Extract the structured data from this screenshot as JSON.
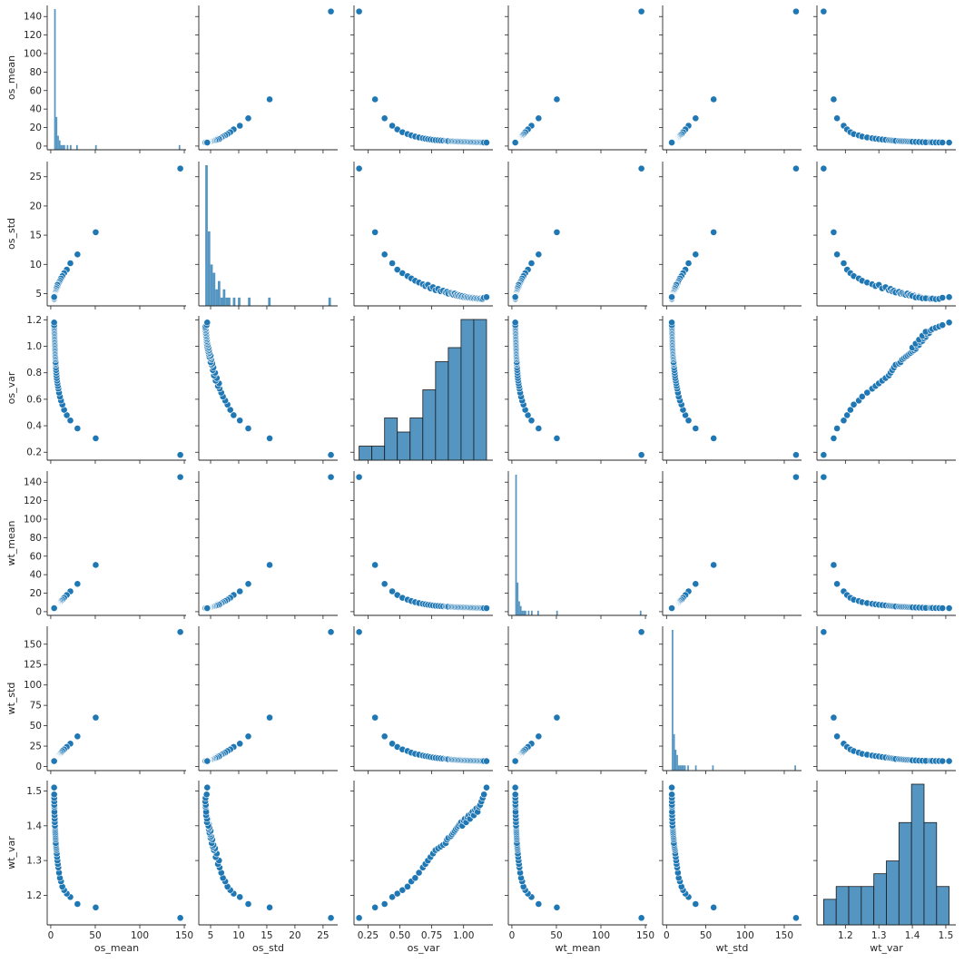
{
  "chart_data": {
    "type": "pairplot",
    "variables": [
      "os_mean",
      "os_std",
      "os_var",
      "wt_mean",
      "wt_std",
      "wt_var"
    ],
    "point_color": "#1f77b4",
    "hist_color": "#4c8fbf",
    "axes": {
      "os_mean": {
        "label": "os_mean",
        "range": [
          -4,
          152
        ],
        "ticks": [
          0,
          20,
          40,
          60,
          80,
          100,
          120,
          140
        ],
        "bottom_ticks": [
          0,
          50,
          100,
          150
        ],
        "tick_format": "int"
      },
      "os_std": {
        "label": "os_std",
        "range": [
          2.9,
          27.6
        ],
        "ticks": [
          5,
          10,
          15,
          20,
          25
        ],
        "bottom_ticks": [
          5,
          10,
          15,
          20,
          25
        ],
        "tick_format": "int"
      },
      "os_var": {
        "label": "os_var",
        "range": [
          0.14,
          1.23
        ],
        "ticks": [
          0.2,
          0.4,
          0.6,
          0.8,
          1.0,
          1.2
        ],
        "bottom_ticks": [
          0.25,
          0.5,
          0.75,
          1.0
        ],
        "tick_format": "fixed1",
        "bottom_tick_format": "fixed2"
      },
      "wt_mean": {
        "label": "wt_mean",
        "range": [
          -4,
          152
        ],
        "ticks": [
          0,
          20,
          40,
          60,
          80,
          100,
          120,
          140
        ],
        "bottom_ticks": [
          0,
          50,
          100,
          150
        ],
        "tick_format": "int"
      },
      "wt_std": {
        "label": "wt_std",
        "range": [
          -5,
          172
        ],
        "ticks": [
          0,
          25,
          50,
          75,
          100,
          125,
          150
        ],
        "bottom_ticks": [
          0,
          50,
          100,
          150
        ],
        "tick_format": "int"
      },
      "wt_var": {
        "label": "wt_var",
        "range": [
          1.115,
          1.53
        ],
        "ticks": [
          1.2,
          1.3,
          1.4,
          1.5
        ],
        "bottom_ticks": [
          1.2,
          1.3,
          1.4,
          1.5
        ],
        "tick_format": "fixed1"
      }
    },
    "records": [
      [
        145.5,
        26.4,
        0.18,
        145.5,
        165,
        1.135
      ],
      [
        50.5,
        15.5,
        0.305,
        50.5,
        60,
        1.165
      ],
      [
        30.0,
        11.7,
        0.38,
        30.0,
        37,
        1.175
      ],
      [
        22.0,
        10.2,
        0.44,
        22.0,
        28,
        1.195
      ],
      [
        18.0,
        9.1,
        0.48,
        18.0,
        24,
        1.205
      ],
      [
        15.0,
        8.5,
        0.52,
        15.0,
        21,
        1.215
      ],
      [
        13.0,
        8.0,
        0.56,
        13.0,
        19,
        1.225
      ],
      [
        11.5,
        7.6,
        0.59,
        11.5,
        17,
        1.24
      ],
      [
        10.3,
        7.2,
        0.62,
        10.3,
        15.5,
        1.25
      ],
      [
        9.3,
        6.9,
        0.65,
        9.3,
        14.5,
        1.265
      ],
      [
        8.5,
        6.6,
        0.68,
        8.5,
        13.5,
        1.28
      ],
      [
        8.0,
        6.3,
        0.7,
        8.0,
        12.8,
        1.29
      ],
      [
        7.5,
        6.5,
        0.72,
        7.5,
        12.3,
        1.3
      ],
      [
        7.1,
        5.9,
        0.74,
        7.1,
        11.7,
        1.31
      ],
      [
        6.7,
        6.1,
        0.76,
        6.7,
        11.1,
        1.32
      ],
      [
        6.4,
        5.6,
        0.78,
        6.4,
        10.7,
        1.33
      ],
      [
        6.2,
        5.8,
        0.8,
        6.2,
        10.3,
        1.335
      ],
      [
        6.0,
        5.4,
        0.82,
        6.0,
        10.0,
        1.34
      ],
      [
        5.8,
        5.5,
        0.84,
        5.8,
        9.6,
        1.345
      ],
      [
        5.6,
        5.2,
        0.86,
        5.6,
        9.3,
        1.35
      ],
      [
        5.5,
        5.3,
        0.87,
        5.5,
        9.1,
        1.36
      ],
      [
        5.4,
        5.0,
        0.88,
        5.4,
        8.9,
        1.365
      ],
      [
        5.3,
        5.1,
        0.9,
        5.3,
        8.7,
        1.37
      ],
      [
        5.2,
        4.9,
        0.91,
        5.2,
        8.5,
        1.375
      ],
      [
        5.1,
        4.8,
        0.92,
        5.1,
        8.3,
        1.38
      ],
      [
        5.0,
        5.0,
        0.93,
        5.0,
        8.2,
        1.385
      ],
      [
        4.95,
        4.7,
        0.94,
        4.95,
        8.1,
        1.39
      ],
      [
        4.9,
        4.8,
        0.95,
        4.9,
        8.0,
        1.395
      ],
      [
        4.85,
        4.6,
        0.96,
        4.85,
        7.9,
        1.4
      ],
      [
        4.8,
        4.7,
        0.97,
        4.8,
        7.8,
        1.405
      ],
      [
        4.75,
        4.5,
        0.98,
        4.75,
        7.7,
        1.41
      ],
      [
        4.7,
        4.6,
        0.99,
        4.7,
        7.6,
        1.4
      ],
      [
        4.65,
        4.4,
        1.0,
        4.65,
        7.5,
        1.415
      ],
      [
        4.6,
        4.5,
        1.01,
        4.6,
        7.45,
        1.42
      ],
      [
        4.55,
        4.35,
        1.02,
        4.55,
        7.4,
        1.41
      ],
      [
        4.5,
        4.4,
        1.03,
        4.5,
        7.35,
        1.425
      ],
      [
        4.45,
        4.3,
        1.04,
        4.45,
        7.3,
        1.43
      ],
      [
        4.4,
        4.35,
        1.05,
        4.4,
        7.25,
        1.42
      ],
      [
        4.35,
        4.25,
        1.06,
        4.35,
        7.2,
        1.435
      ],
      [
        4.3,
        4.3,
        1.07,
        4.3,
        7.15,
        1.44
      ],
      [
        4.25,
        4.2,
        1.08,
        4.25,
        7.1,
        1.43
      ],
      [
        4.2,
        4.25,
        1.09,
        4.2,
        7.05,
        1.445
      ],
      [
        4.15,
        4.15,
        1.1,
        4.15,
        7.0,
        1.45
      ],
      [
        4.1,
        4.2,
        1.11,
        4.1,
        6.95,
        1.44
      ],
      [
        4.05,
        4.1,
        1.12,
        4.05,
        6.9,
        1.455
      ],
      [
        4.0,
        4.15,
        1.13,
        4.0,
        6.85,
        1.46
      ],
      [
        3.95,
        4.05,
        1.14,
        3.95,
        6.8,
        1.47
      ],
      [
        3.9,
        4.1,
        1.15,
        3.9,
        6.75,
        1.48
      ],
      [
        3.85,
        4.3,
        1.16,
        3.85,
        6.7,
        1.49
      ],
      [
        3.8,
        4.4,
        1.18,
        3.8,
        6.65,
        1.51
      ]
    ],
    "histograms": [
      {
        "variable": "os_mean",
        "bins": 80,
        "color": "#4c8fbf"
      },
      {
        "variable": "os_std",
        "bins": 50,
        "color": "#4c8fbf"
      },
      {
        "variable": "os_var",
        "bins": 10,
        "color": "#4c8fbf"
      },
      {
        "variable": "wt_mean",
        "bins": 80,
        "color": "#4c8fbf"
      },
      {
        "variable": "wt_std",
        "bins": 80,
        "color": "#4c8fbf"
      },
      {
        "variable": "wt_var",
        "bins": 10,
        "color": "#4c8fbf"
      }
    ]
  }
}
